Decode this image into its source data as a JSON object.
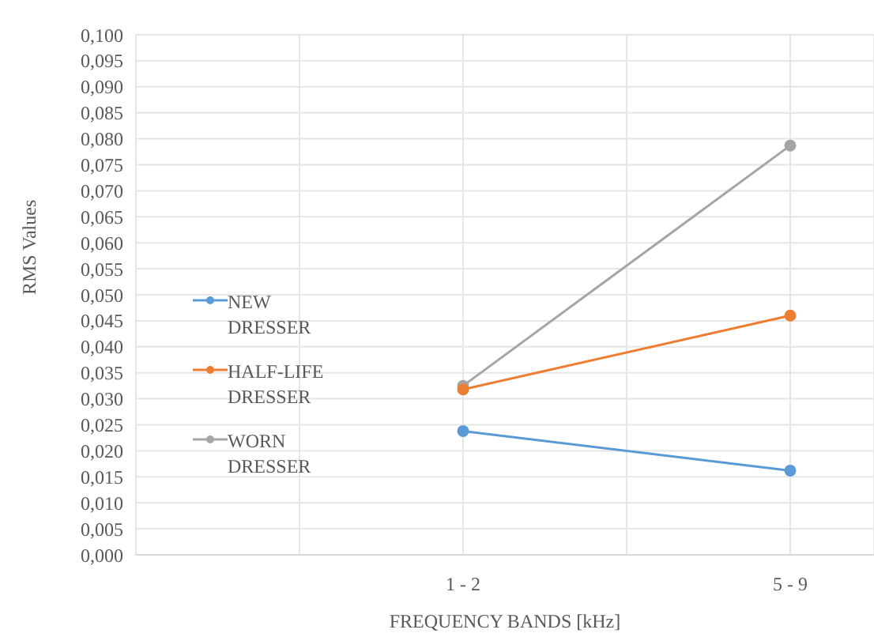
{
  "chart_data": {
    "type": "line",
    "xlabel": "FREQUENCY BANDS [kHz]",
    "ylabel": "RMS Values",
    "categories": [
      null,
      null,
      "1 - 2",
      null,
      "5 - 9"
    ],
    "series": [
      {
        "name": "NEW DRESSER",
        "color": "#5b9bd5",
        "values": [
          null,
          null,
          0.0238,
          null,
          0.0162
        ]
      },
      {
        "name": "HALF-LIFE DRESSER",
        "color": "#ed7d31",
        "values": [
          null,
          null,
          0.0318,
          null,
          0.046
        ]
      },
      {
        "name": "WORN DRESSER",
        "color": "#a5a5a5",
        "values": [
          null,
          null,
          0.0325,
          null,
          0.0787
        ]
      }
    ],
    "ylim": [
      0,
      0.1
    ],
    "yticks": [
      {
        "value": 0,
        "label": "0,000"
      },
      {
        "value": 0.005,
        "label": "0,005"
      },
      {
        "value": 0.01,
        "label": "0,010"
      },
      {
        "value": 0.015,
        "label": "0,015"
      },
      {
        "value": 0.02,
        "label": "0,020"
      },
      {
        "value": 0.025,
        "label": "0,025"
      },
      {
        "value": 0.03,
        "label": "0,030"
      },
      {
        "value": 0.035,
        "label": "0,035"
      },
      {
        "value": 0.04,
        "label": "0,040"
      },
      {
        "value": 0.045,
        "label": "0,045"
      },
      {
        "value": 0.05,
        "label": "0,050"
      },
      {
        "value": 0.055,
        "label": "0,055"
      },
      {
        "value": 0.06,
        "label": "0,060"
      },
      {
        "value": 0.065,
        "label": "0,065"
      },
      {
        "value": 0.07,
        "label": "0,070"
      },
      {
        "value": 0.075,
        "label": "0,075"
      },
      {
        "value": 0.08,
        "label": "0,080"
      },
      {
        "value": 0.085,
        "label": "0,085"
      },
      {
        "value": 0.09,
        "label": "0,090"
      },
      {
        "value": 0.095,
        "label": "0,095"
      },
      {
        "value": 0.1,
        "label": "0,100"
      }
    ],
    "grid": true,
    "legend": "left",
    "marker": "circle",
    "line_style": "solid"
  }
}
